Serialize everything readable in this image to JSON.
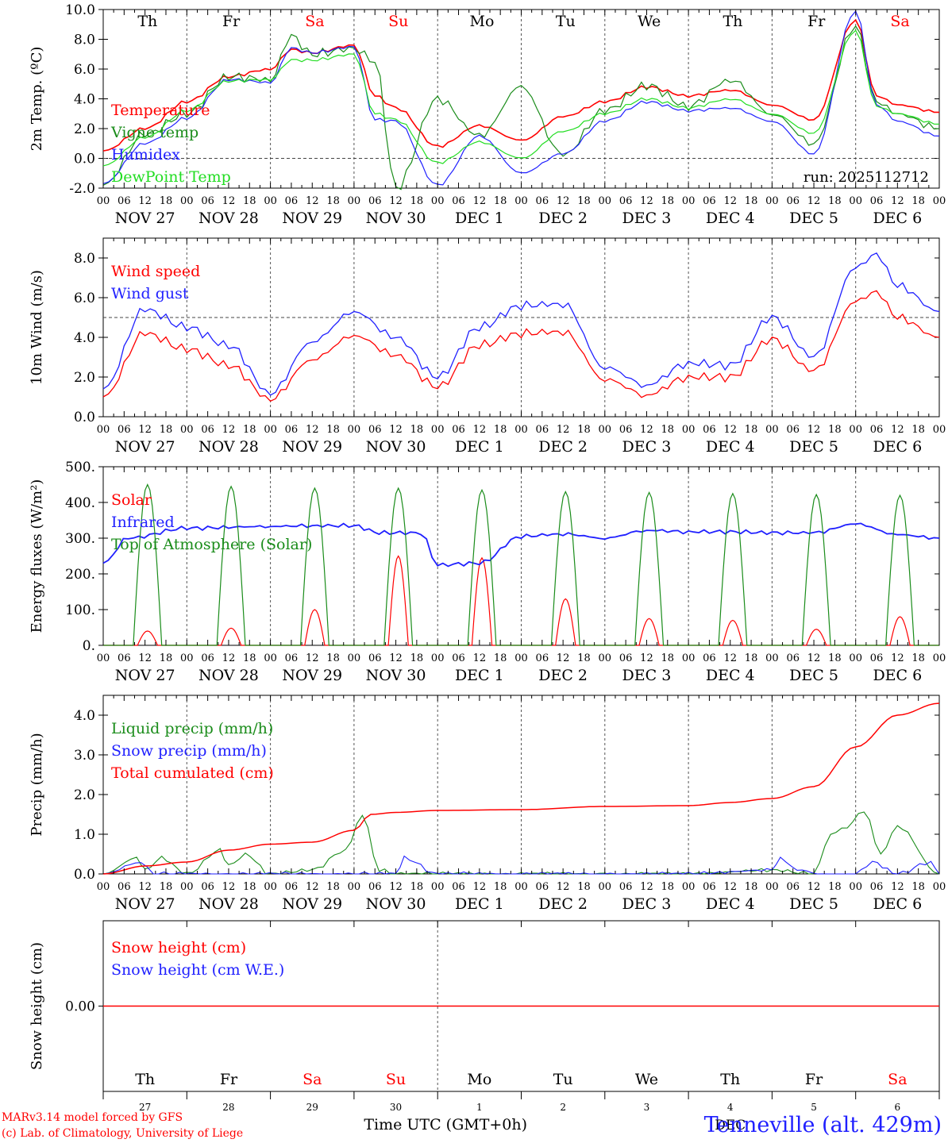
{
  "station": "Tenneville (alt. 429m)",
  "credits": [
    "MARv3.14 model forced by GFS",
    "(c) Lab. of Climatology, University of Liege"
  ],
  "run_label": "run: 2025112712",
  "x_axis": {
    "hour_ticks": [
      "00",
      "06",
      "12",
      "18"
    ],
    "date_labels": [
      "NOV 27",
      "NOV 28",
      "NOV 29",
      "NOV 30",
      "DEC  1",
      "DEC  2",
      "DEC  3",
      "DEC  4",
      "DEC  5",
      "DEC  6"
    ],
    "weekdays": [
      "Th",
      "Fr",
      "Sa",
      "Su",
      "Mo",
      "Tu",
      "We",
      "Th",
      "Fr",
      "Sa"
    ],
    "weekend": [
      false,
      false,
      true,
      true,
      false,
      false,
      false,
      false,
      false,
      true
    ],
    "day_numbers": [
      "27",
      "28",
      "29",
      "30",
      "1",
      "2",
      "3",
      "4",
      "5",
      "6"
    ],
    "month_label": "DEC",
    "time_label": "Time UTC (GMT+0h)"
  },
  "colors": {
    "red": "#ff0000",
    "green": "#1a8c1a",
    "blue": "#2020ff",
    "lightgreen": "#22dd22",
    "axis": "#000000"
  },
  "chart_data": [
    {
      "id": "temp",
      "type": "line",
      "ylabel": "2m Temp. (ºC)",
      "ylim": [
        -2,
        10
      ],
      "yticks": [
        "-2.0",
        "0.0",
        "2.0",
        "4.0",
        "6.0",
        "8.0",
        "10.0"
      ],
      "ytick_values": [
        -2,
        0,
        2,
        4,
        6,
        8,
        10
      ],
      "dashed_ref": 0,
      "x_days": [
        0,
        0.5,
        1,
        1.5,
        2,
        2.25,
        2.5,
        3,
        3.25,
        3.5,
        4,
        4.5,
        5,
        5.5,
        6,
        6.5,
        7,
        7.5,
        8,
        8.5,
        9,
        9.25,
        9.5,
        10
      ],
      "series": [
        {
          "name": "Temperature",
          "color": "red",
          "values": [
            0.5,
            2.0,
            3.8,
            5.5,
            6.0,
            7.3,
            7.1,
            7.6,
            4.2,
            3.4,
            0.8,
            2.2,
            1.2,
            2.8,
            3.8,
            4.8,
            4.2,
            4.6,
            3.6,
            2.6,
            9.3,
            4.2,
            3.6,
            3.1
          ]
        },
        {
          "name": "Vigne temp",
          "color": "green",
          "values": [
            -1.8,
            1.6,
            3.0,
            5.5,
            5.3,
            8.2,
            7.0,
            7.4,
            6.5,
            -2.0,
            4.0,
            1.5,
            4.8,
            0.2,
            3.2,
            4.9,
            3.5,
            5.3,
            3.0,
            1.0,
            8.9,
            3.8,
            3.0,
            2.0
          ]
        },
        {
          "name": "Humidex",
          "color": "blue",
          "values": [
            -1.7,
            1.0,
            2.7,
            5.3,
            5.1,
            7.4,
            7.1,
            7.5,
            2.6,
            2.5,
            -1.8,
            1.5,
            -1.0,
            0.3,
            2.5,
            3.8,
            3.2,
            3.4,
            2.5,
            0.3,
            9.9,
            3.6,
            2.5,
            1.5
          ]
        },
        {
          "name": "DewPoint Temp",
          "color": "lightgreen",
          "values": [
            -0.5,
            1.4,
            3.2,
            5.2,
            5.3,
            6.6,
            6.6,
            7.0,
            3.0,
            2.6,
            -0.3,
            1.1,
            0.0,
            1.8,
            3.0,
            4.0,
            3.4,
            4.0,
            3.0,
            1.7,
            8.6,
            3.5,
            3.0,
            2.3
          ]
        }
      ]
    },
    {
      "id": "wind",
      "type": "line",
      "ylabel": "10m Wind (m/s)",
      "ylim": [
        0,
        9
      ],
      "yticks": [
        "0.0",
        "2.0",
        "4.0",
        "6.0",
        "8.0"
      ],
      "ytick_values": [
        0,
        2,
        4,
        6,
        8
      ],
      "dashed_ref": 5,
      "x_days": [
        0,
        0.5,
        1,
        1.5,
        2,
        2.5,
        3,
        3.5,
        4,
        4.5,
        5,
        5.5,
        6,
        6.5,
        7,
        7.5,
        8,
        8.5,
        9,
        9.25,
        9.5,
        10
      ],
      "series": [
        {
          "name": "Wind speed",
          "color": "red",
          "values": [
            1.0,
            4.2,
            3.4,
            2.6,
            0.9,
            2.9,
            4.1,
            3.1,
            1.5,
            3.6,
            4.2,
            4.3,
            1.9,
            1.1,
            2.0,
            2.0,
            3.9,
            2.3,
            5.8,
            6.3,
            5.0,
            4.0
          ]
        },
        {
          "name": "Wind gust",
          "color": "blue",
          "values": [
            1.4,
            5.4,
            4.5,
            3.6,
            1.2,
            3.8,
            5.3,
            4.0,
            2.0,
            4.5,
            5.6,
            5.7,
            2.5,
            1.6,
            2.7,
            2.6,
            5.0,
            3.0,
            7.5,
            8.2,
            6.6,
            5.3
          ]
        }
      ]
    },
    {
      "id": "flux",
      "type": "line",
      "ylabel": "Energy fluxes (W/m²)",
      "ylim": [
        0,
        500
      ],
      "yticks": [
        "0.",
        "100.",
        "200.",
        "300.",
        "400.",
        "500."
      ],
      "ytick_values": [
        0,
        100,
        200,
        300,
        400,
        500
      ],
      "dashed_ref": null,
      "series": [
        {
          "name": "Solar",
          "color": "red",
          "noon_peaks": [
            40,
            48,
            100,
            250,
            245,
            130,
            75,
            70,
            45,
            80
          ]
        },
        {
          "name": "Infrared",
          "color": "blue",
          "x_days": [
            0,
            0.3,
            1,
            2,
            2.5,
            3,
            3.3,
            3.8,
            4,
            4.5,
            5,
            5.5,
            6,
            6.5,
            7,
            7.5,
            8,
            8.5,
            9,
            9.5,
            10
          ],
          "values": [
            230,
            300,
            328,
            333,
            335,
            335,
            315,
            315,
            225,
            230,
            305,
            312,
            300,
            322,
            318,
            318,
            315,
            315,
            340,
            310,
            300
          ]
        },
        {
          "name": "Top of Atmosphere (Solar)",
          "color": "green",
          "noon_peaks": [
            450,
            445,
            440,
            440,
            435,
            430,
            428,
            425,
            422,
            420
          ]
        }
      ]
    },
    {
      "id": "precip",
      "type": "line",
      "ylabel": "Precip (mm/h)",
      "ylim": [
        0,
        4.5
      ],
      "yticks": [
        "0.0",
        "1.0",
        "2.0",
        "3.0",
        "4.0"
      ],
      "ytick_values": [
        0,
        1,
        2,
        3,
        4
      ],
      "dashed_ref": null,
      "series": [
        {
          "name": "Liquid precip (mm/h)",
          "color": "green",
          "x_days": [
            0,
            0.4,
            0.5,
            0.7,
            1,
            1.4,
            1.5,
            1.7,
            2,
            2.5,
            2.9,
            3.1,
            3.3,
            3.5,
            4,
            6,
            7,
            8,
            8.5,
            8.7,
            8.9,
            9.1,
            9.3,
            9.5,
            10
          ],
          "values": [
            0,
            0.4,
            0.1,
            0.4,
            0,
            0.6,
            0.2,
            0.5,
            0,
            0.1,
            0.6,
            1.5,
            0.1,
            0,
            0,
            0,
            0,
            0.1,
            0,
            1.0,
            1.2,
            1.6,
            0.5,
            1.2,
            0
          ]
        },
        {
          "name": "Snow precip (mm/h)",
          "color": "blue",
          "x_days": [
            0,
            0.45,
            0.6,
            3.5,
            3.6,
            4,
            6,
            7,
            8,
            8.1,
            8.3,
            8.6,
            9,
            9.2,
            9.5,
            9.9,
            10
          ],
          "values": [
            0,
            0.3,
            0,
            0,
            0.4,
            0,
            0,
            0,
            0.1,
            0.4,
            0.1,
            0,
            0,
            0.3,
            0,
            0.3,
            0
          ]
        },
        {
          "name": "Total cumulated (cm)",
          "color": "red",
          "x_days": [
            0,
            0.5,
            1,
            1.5,
            2,
            2.5,
            3,
            3.2,
            3.5,
            4,
            5,
            6,
            7,
            7.5,
            8,
            8.5,
            9,
            9.5,
            10
          ],
          "values": [
            0,
            0.2,
            0.3,
            0.6,
            0.75,
            0.8,
            1.1,
            1.5,
            1.55,
            1.6,
            1.62,
            1.7,
            1.72,
            1.8,
            1.9,
            2.2,
            3.2,
            4.0,
            4.3
          ]
        }
      ]
    },
    {
      "id": "snow",
      "type": "line",
      "ylabel": "Snow height (cm)",
      "ylim": [
        -1,
        1
      ],
      "yticks": [
        "0.00"
      ],
      "ytick_values": [
        0
      ],
      "dashed_ref": null,
      "series": [
        {
          "name": "Snow height (cm)",
          "color": "red",
          "x_days": [
            0,
            10
          ],
          "values": [
            0,
            0
          ]
        },
        {
          "name": "Snow height (cm W.E.)",
          "color": "blue",
          "x_days": [],
          "values": []
        }
      ]
    }
  ]
}
